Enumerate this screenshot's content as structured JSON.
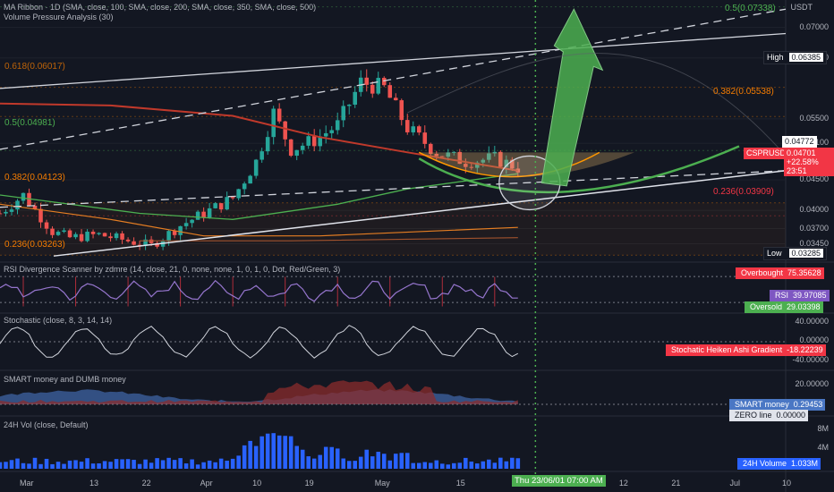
{
  "header": {
    "indicator_line1": "MA Ribbon · 1D (SMA, close, 100, SMA, close, 200, SMA, close, 350, SMA, close, 500)",
    "indicator_line2": "Volume Pressure Analysis (30)",
    "currency": "USDT"
  },
  "panes": {
    "rsi": {
      "title": "RSI Divergence Scanner by zdmre (14, close, 21, 0, none, none, 1, 0, 1, 0, Dot, Red/Green, 3)",
      "overbought_label": "Overbought",
      "overbought_value": "75.35628",
      "rsi_label": "RSI",
      "rsi_value": "39.97085",
      "oversold_label": "Oversold",
      "oversold_value": "29.03398"
    },
    "stoch": {
      "title": "Stochastic (close, 8, 3, 14, 14)",
      "tag_label": "Stochatic Heiken Ashi Gradient",
      "tag_value": "-18.22239",
      "ticks": [
        "40.00000",
        "0.00000",
        "-40.00000"
      ]
    },
    "smart": {
      "title": "SMART money and DUMB money",
      "smart_label": "SMART money",
      "smart_value": "0.29453",
      "zero_label": "ZERO line",
      "zero_value": "0.00000",
      "ticks": [
        "20.00000"
      ]
    },
    "vol": {
      "title": "24H Vol (close, Default)",
      "tag_label": "24H Volume",
      "tag_value": "1.033M",
      "ticks": [
        "8M",
        "4M"
      ]
    }
  },
  "price_axis": {
    "ticks": [
      "0.07000",
      "0.06500",
      "0.05500",
      "0.05100",
      "0.04500",
      "0.04000",
      "0.03700",
      "0.03450"
    ],
    "high_label": "High",
    "high_value": "0.06385",
    "low_label": "Low",
    "low_value": "0.03285",
    "symbol": "CSPRUSDT",
    "last_price": "0.04701",
    "change": "+22.58%",
    "countdown": "23:51",
    "current": "0.04772"
  },
  "fib_labels": [
    {
      "text": "0.5(0.07338)",
      "color": "#4caf50"
    },
    {
      "text": "0.618(0.06017)",
      "color": "#f57c00"
    },
    {
      "text": "0.382(0.05538)",
      "color": "#f57c00"
    },
    {
      "text": "0.5(0.04981)",
      "color": "#4caf50"
    },
    {
      "text": "0.382(0.04123)",
      "color": "#f57c00"
    },
    {
      "text": "0.236(0.03909)",
      "color": "#f23645"
    },
    {
      "text": "0.236(0.03263)",
      "color": "#f57c00"
    }
  ],
  "x_axis": {
    "labels": [
      "Mar",
      "13",
      "22",
      "Apr",
      "10",
      "19",
      "May",
      "15",
      "12",
      "21",
      "Jul",
      "10"
    ],
    "crosshair_label": "Thu 23/06/01 07:00 AM"
  },
  "colors": {
    "up": "#26a69a",
    "down": "#ef5350",
    "ma100": "#4caf50",
    "ma200": "#c0392b",
    "ma350": "#e67e22",
    "rsi": "#9575cd",
    "smart": "#4a77c4",
    "dumb": "#8b2c2c",
    "volume": "#2962ff",
    "arrow": "#4caf50",
    "crosshair": "#4caf50"
  },
  "chart_data": {
    "type": "candlestick",
    "title": "",
    "symbol": "CSPRUSDT",
    "interval": "1D",
    "y_unit": "USDT",
    "ylim": [
      0.0315,
      0.0745
    ],
    "x_start": "2023-03-01",
    "x_end": "2023-07-14",
    "price_path": [
      {
        "date": "2023-03-01",
        "close": 0.0395
      },
      {
        "date": "2023-03-05",
        "close": 0.0425
      },
      {
        "date": "2023-03-10",
        "close": 0.0365
      },
      {
        "date": "2023-03-13",
        "close": 0.0355
      },
      {
        "date": "2023-03-18",
        "close": 0.036
      },
      {
        "date": "2023-03-22",
        "close": 0.0352
      },
      {
        "date": "2023-03-27",
        "close": 0.0342
      },
      {
        "date": "2023-04-01",
        "close": 0.0375
      },
      {
        "date": "2023-04-05",
        "close": 0.0395
      },
      {
        "date": "2023-04-10",
        "close": 0.042
      },
      {
        "date": "2023-04-14",
        "close": 0.048
      },
      {
        "date": "2023-04-17",
        "close": 0.056
      },
      {
        "date": "2023-04-20",
        "close": 0.05
      },
      {
        "date": "2023-04-24",
        "close": 0.0515
      },
      {
        "date": "2023-04-28",
        "close": 0.054
      },
      {
        "date": "2023-05-02",
        "close": 0.061
      },
      {
        "date": "2023-05-06",
        "close": 0.06
      },
      {
        "date": "2023-05-10",
        "close": 0.0535
      },
      {
        "date": "2023-05-15",
        "close": 0.0495
      },
      {
        "date": "2023-05-20",
        "close": 0.048
      },
      {
        "date": "2023-05-25",
        "close": 0.0485
      },
      {
        "date": "2023-05-29",
        "close": 0.047
      }
    ],
    "high": 0.06385,
    "low": 0.03285,
    "last": 0.04701,
    "change_pct": 22.58,
    "fib_levels": [
      0.07338,
      0.06017,
      0.05538,
      0.04981,
      0.04123,
      0.03909,
      0.03263
    ],
    "rsi": {
      "overbought": 75.35628,
      "last": 39.97085,
      "oversold": 29.03398
    },
    "stochastic_last": -18.22239,
    "smart_money_last": 0.29453,
    "volume_last_millions": 1.033,
    "grid": true
  }
}
